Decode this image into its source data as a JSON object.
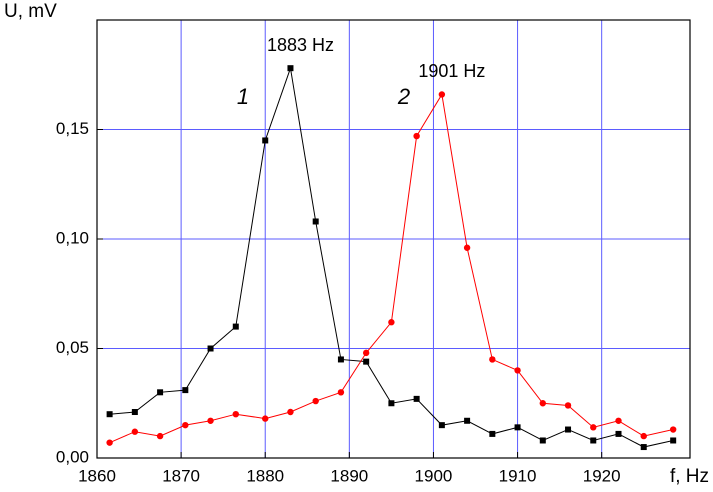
{
  "chart_data": {
    "type": "line",
    "x": [
      1861.5,
      1864.5,
      1867.5,
      1870.5,
      1873.5,
      1876.5,
      1880,
      1883,
      1886,
      1889,
      1892,
      1895,
      1898,
      1901,
      1904,
      1907,
      1910,
      1913,
      1916,
      1919,
      1922,
      1925,
      1928.5
    ],
    "series": [
      {
        "name": "1",
        "color": "#000000",
        "marker": "square",
        "values": [
          0.02,
          0.021,
          0.03,
          0.031,
          0.05,
          0.06,
          0.145,
          0.178,
          0.108,
          0.045,
          0.044,
          0.025,
          0.027,
          0.015,
          0.017,
          0.011,
          0.014,
          0.008,
          0.013,
          0.008,
          0.011,
          0.005,
          0.008
        ]
      },
      {
        "name": "2",
        "color": "#ff0000",
        "marker": "circle",
        "values": [
          0.007,
          0.012,
          0.01,
          0.015,
          0.017,
          0.02,
          0.018,
          0.021,
          0.026,
          0.03,
          0.048,
          0.062,
          0.147,
          0.166,
          0.096,
          0.045,
          0.04,
          0.025,
          0.024,
          0.014,
          0.017,
          0.01,
          0.013
        ]
      }
    ],
    "annotations": [
      {
        "text": "1883 Hz",
        "series": 0,
        "index": 7
      },
      {
        "text": "1901 Hz",
        "series": 1,
        "index": 13
      }
    ],
    "x_label": "f, Hz",
    "y_label": "U, mV",
    "xlim": [
      1860,
      1930.5
    ],
    "ylim": [
      0,
      0.2
    ],
    "xticks": [
      1860,
      1870,
      1880,
      1890,
      1900,
      1910,
      1920
    ],
    "yticks": [
      {
        "value": 0,
        "label": "0,00"
      },
      {
        "value": 0.05,
        "label": "0,05"
      },
      {
        "value": 0.1,
        "label": "0,10"
      },
      {
        "value": 0.15,
        "label": "0,15"
      }
    ],
    "grid": true,
    "grid_color": "#5b5bff"
  }
}
